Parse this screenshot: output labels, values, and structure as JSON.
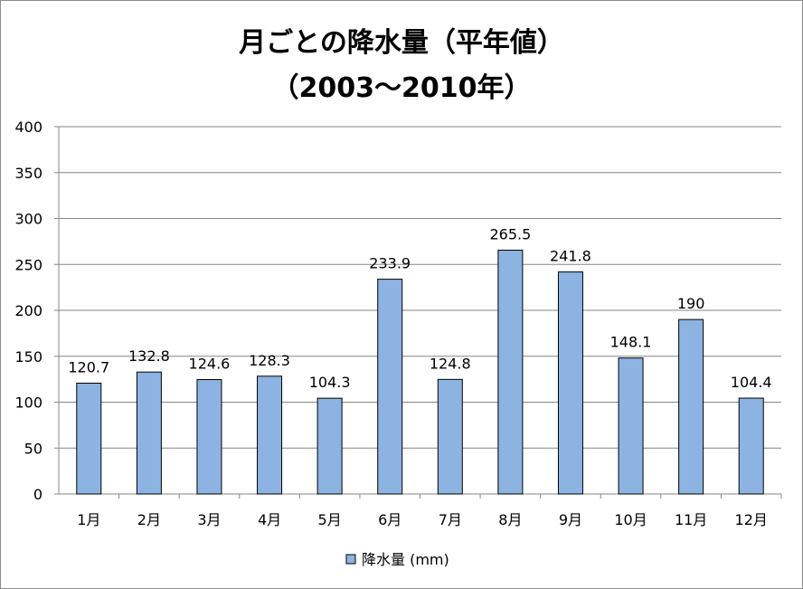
{
  "chart_data": {
    "type": "bar",
    "title_line1": "月ごとの降水量（平年値）",
    "title_line2": "（2003～2010年）",
    "categories": [
      "1月",
      "2月",
      "3月",
      "4月",
      "5月",
      "6月",
      "7月",
      "8月",
      "9月",
      "10月",
      "11月",
      "12月"
    ],
    "series": [
      {
        "name": "降水量 (mm)",
        "values": [
          120.7,
          132.8,
          124.6,
          128.3,
          104.3,
          233.9,
          124.8,
          265.5,
          241.8,
          148.1,
          190,
          104.4
        ],
        "data_labels": [
          "120.7",
          "132.8",
          "124.6",
          "128.3",
          "104.3",
          "233.9",
          "124.8",
          "265.5",
          "241.8",
          "148.1",
          "190",
          "104.4"
        ],
        "color": "#8db3e2"
      }
    ],
    "y_ticks": [
      "0",
      "50",
      "100",
      "150",
      "200",
      "250",
      "300",
      "350",
      "400"
    ],
    "ylim": [
      0,
      400
    ],
    "grid": true,
    "legend_position": "bottom"
  }
}
